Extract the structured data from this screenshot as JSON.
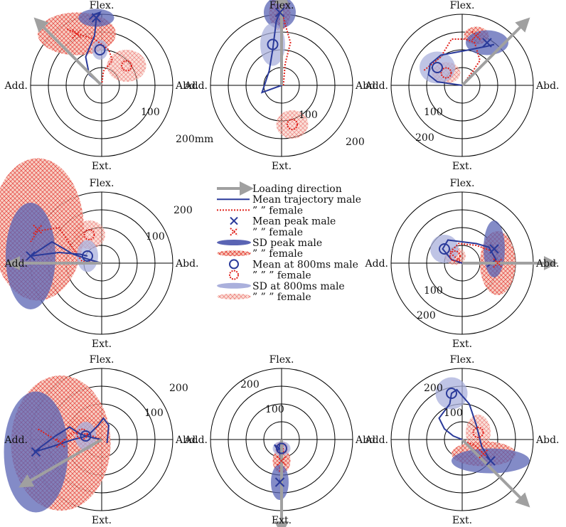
{
  "colors": {
    "male": "#2a3a9a",
    "male_fill": "#5a64b4",
    "male_800_fill": "#aab0dc",
    "female": "#e0201a",
    "female_fill": "#f1a08c",
    "loading": "#a0a0a0",
    "grid": "#000000"
  },
  "directions": {
    "flex": "Flex.",
    "ext": "Ext.",
    "add": "Add.",
    "abd": "Abd."
  },
  "legend": {
    "items": [
      {
        "key": "loading",
        "label": "Loading direction"
      },
      {
        "key": "traj_male",
        "label": "Mean trajectory male"
      },
      {
        "key": "traj_female",
        "label": "”   ”    female"
      },
      {
        "key": "peak_male",
        "label": "Mean peak male"
      },
      {
        "key": "peak_female",
        "label": "”   ”    female"
      },
      {
        "key": "sdpeak_male",
        "label": "SD peak male"
      },
      {
        "key": "sdpeak_female",
        "label": "”   ”    female"
      },
      {
        "key": "m800_male",
        "label": "Mean at 800ms male"
      },
      {
        "key": "m800_female",
        "label": "”   ”   ”    female"
      },
      {
        "key": "sd800_male",
        "label": "SD at 800ms male"
      },
      {
        "key": "sd800_female",
        "label": "”   ”   ”    female"
      }
    ]
  },
  "chart_data": [
    {
      "type": "polar-trajectory",
      "position": "top-left",
      "loading_direction_deg": 135,
      "ring_labels": [
        {
          "text": "100"
        },
        {
          "text": "200mm"
        }
      ],
      "male": {
        "trajectory": [
          [
            0,
            0
          ],
          [
            -35,
            30
          ],
          [
            -45,
            80
          ],
          [
            -20,
            140
          ],
          [
            -15,
            190
          ],
          [
            -5,
            205
          ],
          [
            -20,
            200
          ],
          [
            -35,
            185
          ]
        ],
        "peak": [
          -15,
          190
        ],
        "sd_peak": {
          "rx": 50,
          "ry": 25
        },
        "mean_800": [
          -5,
          100
        ],
        "sd_800": {
          "rx": 22,
          "ry": 28
        }
      },
      "female": {
        "trajectory": [
          [
            0,
            0
          ],
          [
            5,
            40
          ],
          [
            30,
            70
          ],
          [
            20,
            100
          ],
          [
            -20,
            130
          ],
          [
            -70,
            145
          ],
          [
            -100,
            160
          ]
        ],
        "peak": [
          -70,
          145
        ],
        "sd_peak": {
          "rx": 110,
          "ry": 60
        },
        "mean_800": [
          70,
          55
        ],
        "sd_800": {
          "rx": 55,
          "ry": 45
        }
      }
    },
    {
      "type": "polar-trajectory",
      "position": "top-center",
      "loading_direction_deg": 90,
      "ring_labels": [
        {
          "text": "100"
        },
        {
          "text": "200"
        }
      ],
      "male": {
        "trajectory": [
          [
            0,
            0
          ],
          [
            -55,
            -20
          ],
          [
            -35,
            40
          ],
          [
            -25,
            100
          ],
          [
            -15,
            180
          ],
          [
            -5,
            205
          ]
        ],
        "peak": [
          -5,
          205
        ],
        "sd_peak": {
          "rx": 45,
          "ry": 45
        },
        "mean_800": [
          -25,
          115
        ],
        "sd_800": {
          "rx": 35,
          "ry": 60
        }
      },
      "female": {
        "trajectory": [
          [
            5,
            0
          ],
          [
            10,
            60
          ],
          [
            25,
            120
          ],
          [
            5,
            190
          ],
          [
            -5,
            205
          ]
        ],
        "peak": [
          -5,
          205
        ],
        "sd_peak": {
          "rx": 30,
          "ry": 50
        },
        "mean_800": [
          30,
          -110
        ],
        "sd_800": {
          "rx": 45,
          "ry": 40
        }
      }
    },
    {
      "type": "polar-trajectory",
      "position": "top-right",
      "loading_direction_deg": 45,
      "ring_labels": [
        {
          "text": "100"
        },
        {
          "text": "200"
        }
      ],
      "male": {
        "trajectory": [
          [
            0,
            0
          ],
          [
            -70,
            10
          ],
          [
            -95,
            30
          ],
          [
            -90,
            60
          ],
          [
            -60,
            85
          ],
          [
            20,
            100
          ],
          [
            70,
            110
          ],
          [
            90,
            115
          ]
        ],
        "peak": [
          70,
          120
        ],
        "sd_peak": {
          "rx": 60,
          "ry": 35
        },
        "mean_800": [
          -70,
          50
        ],
        "sd_800": {
          "rx": 50,
          "ry": 45
        }
      },
      "female": {
        "trajectory": [
          [
            0,
            0
          ],
          [
            30,
            40
          ],
          [
            50,
            70
          ],
          [
            35,
            120
          ],
          [
            10,
            130
          ],
          [
            -30,
            130
          ],
          [
            -60,
            80
          ],
          [
            -110,
            40
          ]
        ],
        "peak": [
          40,
          140
        ],
        "sd_peak": {
          "rx": 35,
          "ry": 25
        },
        "mean_800": [
          -45,
          35
        ],
        "sd_800": {
          "rx": 40,
          "ry": 30
        }
      }
    },
    {
      "type": "polar-trajectory",
      "position": "middle-left",
      "loading_direction_deg": 180,
      "ring_labels": [
        {
          "text": "100"
        },
        {
          "text": "200"
        }
      ],
      "male": {
        "trajectory": [
          [
            0,
            0
          ],
          [
            -35,
            10
          ],
          [
            -80,
            25
          ],
          [
            -140,
            60
          ],
          [
            -200,
            20
          ],
          [
            -160,
            25
          ],
          [
            -120,
            30
          ],
          [
            -60,
            25
          ],
          [
            -40,
            20
          ]
        ],
        "peak": [
          -200,
          20
        ],
        "sd_peak": {
          "rx": 70,
          "ry": 150
        },
        "mean_800": [
          -40,
          20
        ],
        "sd_800": {
          "rx": 30,
          "ry": 45
        }
      },
      "female": {
        "trajectory": [
          [
            0,
            0
          ],
          [
            -55,
            5
          ],
          [
            -80,
            40
          ],
          [
            -120,
            100
          ],
          [
            -180,
            90
          ],
          [
            -200,
            60
          ]
        ],
        "peak": [
          -180,
          95
        ],
        "sd_peak": {
          "rx": 130,
          "ry": 200
        },
        "mean_800": [
          -35,
          80
        ],
        "sd_800": {
          "rx": 45,
          "ry": 40
        }
      }
    },
    {
      "type": "polar-trajectory",
      "position": "middle-right",
      "loading_direction_deg": 0,
      "ring_labels": [
        {
          "text": "100"
        },
        {
          "text": "200"
        }
      ],
      "male": {
        "trajectory": [
          [
            0,
            0
          ],
          [
            -30,
            10
          ],
          [
            -55,
            40
          ],
          [
            -40,
            65
          ],
          [
            0,
            60
          ],
          [
            40,
            55
          ],
          [
            75,
            45
          ],
          [
            95,
            10
          ],
          [
            70,
            -10
          ]
        ],
        "peak": [
          90,
          40
        ],
        "sd_peak": {
          "rx": 30,
          "ry": 80
        },
        "mean_800": [
          -50,
          40
        ],
        "sd_800": {
          "rx": 40,
          "ry": 40
        }
      },
      "female": {
        "trajectory": [
          [
            0,
            0
          ],
          [
            -35,
            30
          ],
          [
            -10,
            55
          ],
          [
            40,
            50
          ],
          [
            80,
            35
          ],
          [
            100,
            0
          ]
        ],
        "peak": [
          100,
          0
        ],
        "sd_peak": {
          "rx": 50,
          "ry": 90
        },
        "mean_800": [
          -20,
          20
        ],
        "sd_800": {
          "rx": 30,
          "ry": 25
        }
      }
    },
    {
      "type": "polar-trajectory",
      "position": "bottom-left",
      "loading_direction_deg": 210,
      "ring_labels": [
        {
          "text": "100"
        },
        {
          "text": "200"
        }
      ],
      "male": {
        "trajectory": [
          [
            0,
            0
          ],
          [
            -25,
            5
          ],
          [
            -60,
            15
          ],
          [
            -90,
            35
          ],
          [
            -130,
            10
          ],
          [
            -190,
            -35
          ],
          [
            -140,
            -20
          ],
          [
            -80,
            0
          ],
          [
            -40,
            10
          ],
          [
            -10,
            40
          ],
          [
            5,
            60
          ],
          [
            20,
            40
          ],
          [
            15,
            -10
          ]
        ],
        "peak": [
          -185,
          -35
        ],
        "sd_peak": {
          "rx": 90,
          "ry": 170
        },
        "mean_800": [
          -45,
          10
        ],
        "sd_800": {
          "rx": 30,
          "ry": 40
        }
      },
      "female": {
        "trajectory": [
          [
            0,
            0
          ],
          [
            -40,
            15
          ],
          [
            -80,
            20
          ],
          [
            -115,
            -10
          ],
          [
            -180,
            30
          ]
        ],
        "peak": [
          -115,
          -10
        ],
        "sd_peak": {
          "rx": 140,
          "ry": 190
        },
        "mean_800": [
          -55,
          15
        ],
        "sd_800": {
          "rx": 55,
          "ry": 50
        }
      }
    },
    {
      "type": "polar-trajectory",
      "position": "bottom-center",
      "loading_direction_deg": 270,
      "ring_labels": [
        {
          "text": "200"
        },
        {
          "text": "100"
        }
      ],
      "male": {
        "trajectory": [
          [
            0,
            0
          ],
          [
            -10,
            -30
          ],
          [
            -20,
            -15
          ],
          [
            -5,
            -25
          ],
          [
            0,
            -100
          ],
          [
            -5,
            -120
          ]
        ],
        "peak": [
          -5,
          -120
        ],
        "sd_peak": {
          "rx": 25,
          "ry": 50
        },
        "mean_800": [
          0,
          -25
        ],
        "sd_800": {
          "rx": 25,
          "ry": 20
        }
      },
      "female": {
        "trajectory": [
          [
            0,
            0
          ],
          [
            5,
            -30
          ],
          [
            0,
            -60
          ],
          [
            -5,
            -90
          ]
        ],
        "peak": [
          0,
          -60
        ],
        "sd_peak": {
          "rx": 25,
          "ry": 35
        },
        "mean_800": [
          0,
          -25
        ],
        "sd_800": {
          "rx": 20,
          "ry": 20
        }
      }
    },
    {
      "type": "polar-trajectory",
      "position": "bottom-right",
      "loading_direction_deg": 315,
      "ring_labels": [
        {
          "text": "200"
        },
        {
          "text": "100"
        }
      ],
      "male": {
        "trajectory": [
          [
            0,
            0
          ],
          [
            -25,
            10
          ],
          [
            -50,
            30
          ],
          [
            -65,
            60
          ],
          [
            -35,
            100
          ],
          [
            -30,
            130
          ],
          [
            -15,
            140
          ],
          [
            20,
            100
          ],
          [
            40,
            40
          ],
          [
            55,
            -20
          ],
          [
            80,
            -60
          ]
        ],
        "peak": [
          80,
          -60
        ],
        "sd_peak": {
          "rx": 110,
          "ry": 35
        },
        "mean_800": [
          -30,
          130
        ],
        "sd_800": {
          "rx": 45,
          "ry": 45
        }
      },
      "female": {
        "trajectory": [
          [
            0,
            0
          ],
          [
            20,
            -10
          ],
          [
            40,
            -20
          ],
          [
            60,
            -40
          ]
        ],
        "peak": [
          60,
          -40
        ],
        "sd_peak": {
          "rx": 90,
          "ry": 35
        },
        "mean_800": [
          45,
          20
        ],
        "sd_800": {
          "rx": 35,
          "ry": 50
        }
      }
    }
  ]
}
